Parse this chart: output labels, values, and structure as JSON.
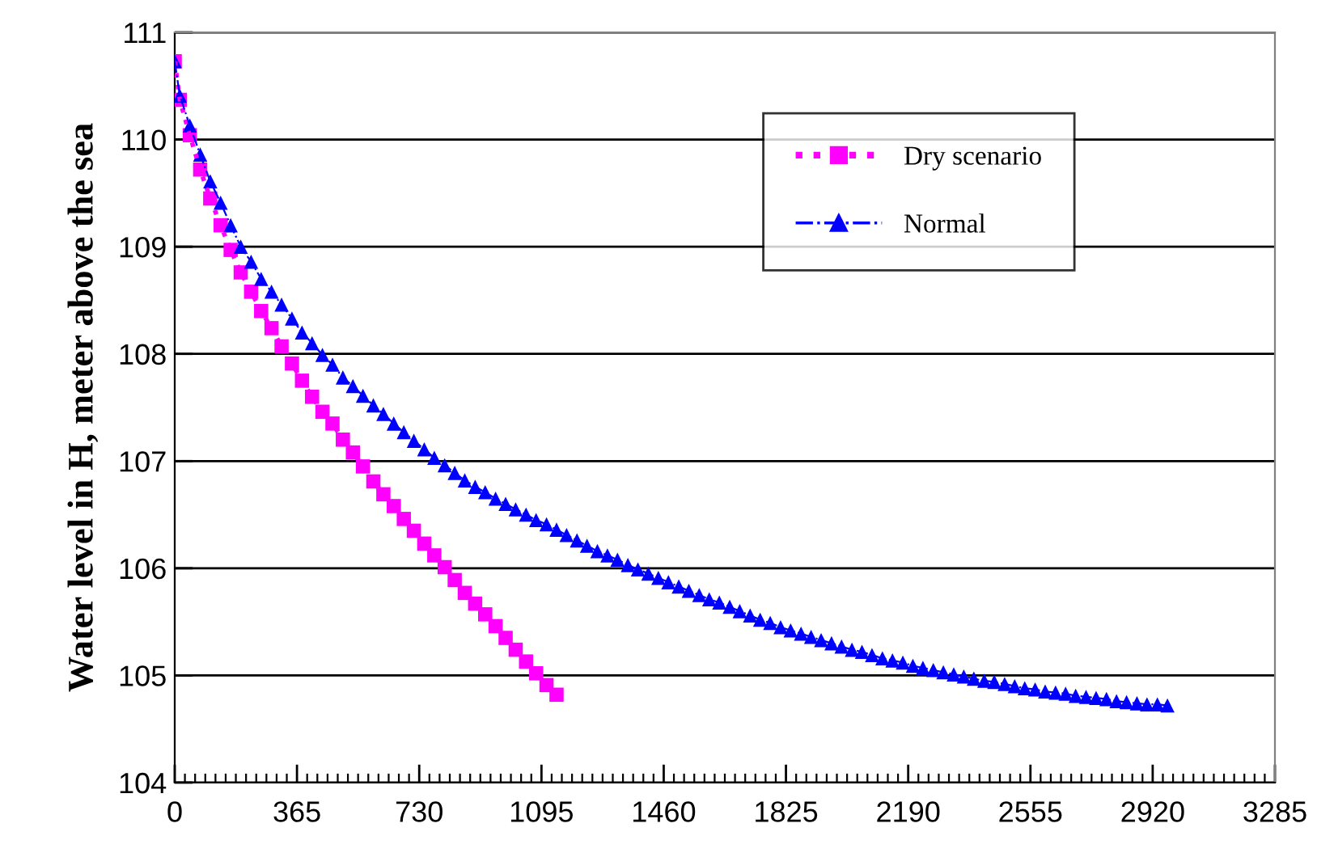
{
  "chart_data": {
    "type": "line",
    "ylabel": "Water level in H, meter above the sea",
    "xlim": [
      0,
      3285
    ],
    "xticks": [
      0,
      365,
      730,
      1095,
      1460,
      1825,
      2190,
      2555,
      2920,
      3285
    ],
    "ylim": [
      104,
      111
    ],
    "yticks": [
      104,
      105,
      106,
      107,
      108,
      109,
      110,
      111
    ],
    "grid": "y",
    "legend": "top right",
    "series": [
      {
        "name": "Dry scenario",
        "color": "#ff00ff",
        "marker": "square",
        "line_style": "dotted",
        "x": [
          0,
          15,
          45,
          76,
          106,
          137,
          167,
          197,
          228,
          258,
          289,
          319,
          350,
          380,
          410,
          441,
          471,
          502,
          532,
          562,
          593,
          623,
          654,
          684,
          714,
          745,
          775,
          806,
          836,
          866,
          897,
          927,
          958,
          988,
          1018,
          1049,
          1079,
          1110,
          1140
        ],
        "values": [
          110.73,
          110.37,
          110.04,
          109.72,
          109.45,
          109.2,
          108.97,
          108.76,
          108.58,
          108.4,
          108.24,
          108.07,
          107.91,
          107.75,
          107.6,
          107.46,
          107.35,
          107.2,
          107.08,
          106.95,
          106.81,
          106.69,
          106.58,
          106.46,
          106.35,
          106.23,
          106.12,
          106.01,
          105.89,
          105.77,
          105.67,
          105.57,
          105.46,
          105.35,
          105.24,
          105.13,
          105.02,
          104.91,
          104.82
        ]
      },
      {
        "name": "Normal",
        "color": "#0000ff",
        "marker": "triangle",
        "line_style": "dashed",
        "x": [
          0,
          15,
          45,
          76,
          106,
          137,
          167,
          197,
          228,
          258,
          289,
          319,
          350,
          380,
          410,
          441,
          471,
          502,
          532,
          562,
          593,
          623,
          654,
          684,
          714,
          745,
          775,
          806,
          836,
          866,
          897,
          927,
          958,
          988,
          1018,
          1049,
          1079,
          1110,
          1140,
          1170,
          1201,
          1231,
          1262,
          1292,
          1322,
          1353,
          1383,
          1414,
          1444,
          1474,
          1505,
          1535,
          1566,
          1596,
          1626,
          1657,
          1687,
          1718,
          1748,
          1778,
          1809,
          1839,
          1870,
          1900,
          1930,
          1961,
          1991,
          2022,
          2052,
          2082,
          2113,
          2143,
          2174,
          2204,
          2234,
          2265,
          2295,
          2326,
          2356,
          2386,
          2417,
          2447,
          2478,
          2508,
          2538,
          2569,
          2599,
          2630,
          2660,
          2690,
          2721,
          2751,
          2782,
          2812,
          2842,
          2873,
          2903,
          2934,
          2964
        ],
        "values": [
          110.73,
          110.41,
          110.13,
          109.86,
          109.61,
          109.41,
          109.2,
          109.0,
          108.86,
          108.7,
          108.58,
          108.46,
          108.33,
          108.2,
          108.1,
          107.99,
          107.9,
          107.78,
          107.7,
          107.61,
          107.52,
          107.44,
          107.35,
          107.27,
          107.19,
          107.11,
          107.03,
          106.96,
          106.89,
          106.82,
          106.76,
          106.71,
          106.65,
          106.6,
          106.55,
          106.5,
          106.45,
          106.41,
          106.36,
          106.31,
          106.26,
          106.21,
          106.16,
          106.12,
          106.08,
          106.03,
          105.99,
          105.95,
          105.91,
          105.87,
          105.83,
          105.79,
          105.75,
          105.71,
          105.68,
          105.64,
          105.6,
          105.56,
          105.52,
          105.49,
          105.45,
          105.42,
          105.39,
          105.36,
          105.33,
          105.3,
          105.27,
          105.24,
          105.22,
          105.19,
          105.16,
          105.14,
          105.12,
          105.09,
          105.07,
          105.05,
          105.03,
          105.01,
          104.99,
          104.97,
          104.95,
          104.94,
          104.92,
          104.9,
          104.88,
          104.87,
          104.85,
          104.84,
          104.83,
          104.81,
          104.8,
          104.79,
          104.78,
          104.76,
          104.75,
          104.74,
          104.73,
          104.73,
          104.72
        ]
      }
    ]
  }
}
